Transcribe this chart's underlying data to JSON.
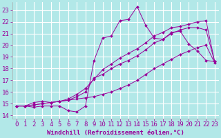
{
  "background_color": "#b2e8e8",
  "grid_color": "#ffffff",
  "line_color": "#990099",
  "marker_color": "#990099",
  "xlabel": "Windchill (Refroidissement éolien,°C)",
  "xlabel_fontsize": 6.5,
  "tick_fontsize": 6.5,
  "xlim": [
    -0.5,
    23.5
  ],
  "ylim": [
    13.7,
    23.7
  ],
  "yticks": [
    14,
    15,
    16,
    17,
    18,
    19,
    20,
    21,
    22,
    23
  ],
  "xticks": [
    0,
    1,
    2,
    3,
    4,
    5,
    6,
    7,
    8,
    9,
    10,
    11,
    12,
    13,
    14,
    15,
    16,
    17,
    18,
    19,
    20,
    21,
    22,
    23
  ],
  "series": [
    [
      14.8,
      14.8,
      14.7,
      14.8,
      14.8,
      14.8,
      14.4,
      14.3,
      14.8,
      18.7,
      20.6,
      20.8,
      22.1,
      22.2,
      23.3,
      21.7,
      20.6,
      20.5,
      21.1,
      21.2,
      20.1,
      19.5,
      18.7,
      18.6
    ],
    [
      14.8,
      14.8,
      15.1,
      15.2,
      15.1,
      15.2,
      15.3,
      15.6,
      16.0,
      17.2,
      17.5,
      18.0,
      18.4,
      18.7,
      19.1,
      19.6,
      20.2,
      20.5,
      21.0,
      21.3,
      21.5,
      21.5,
      21.3,
      18.6
    ],
    [
      14.8,
      14.8,
      14.9,
      15.0,
      15.1,
      15.2,
      15.4,
      15.8,
      16.3,
      17.1,
      17.9,
      18.4,
      18.9,
      19.3,
      19.7,
      20.2,
      20.8,
      21.1,
      21.5,
      21.6,
      21.8,
      22.0,
      22.1,
      18.6
    ],
    [
      14.8,
      14.8,
      14.9,
      15.0,
      15.1,
      15.2,
      15.3,
      15.4,
      15.5,
      15.6,
      15.8,
      16.0,
      16.3,
      16.6,
      17.0,
      17.5,
      18.0,
      18.4,
      18.8,
      19.2,
      19.5,
      19.8,
      20.0,
      18.5
    ]
  ]
}
